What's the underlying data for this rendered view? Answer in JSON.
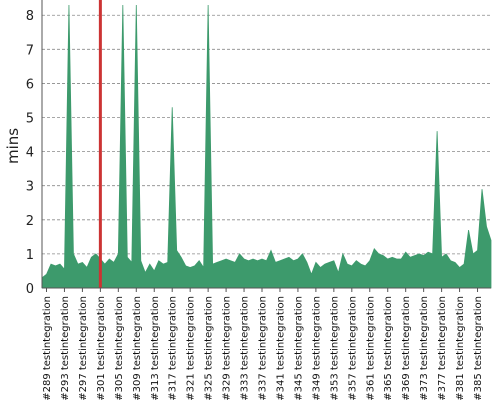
{
  "chart_data": {
    "type": "area",
    "ylabel": "mins",
    "xlabel": "",
    "title": "",
    "ylim": [
      0,
      8.3
    ],
    "yticks": [
      0,
      1,
      2,
      3,
      4,
      5,
      6,
      7,
      8
    ],
    "grid": true,
    "color_area": "#3d9a6c",
    "color_marker": "#cc3333",
    "x_labels": [
      "#289 testintegration",
      "#293 testintegration",
      "#297 testintegration",
      "#301 testintegration",
      "#305 testintegration",
      "#309 testintegration",
      "#313 testintegration",
      "#317 testintegration",
      "#321 testintegration",
      "#325 testintegration",
      "#329 testintegration",
      "#333 testintegration",
      "#337 testintegration",
      "#341 testintegration",
      "#345 testintegration",
      "#349 testintegration",
      "#353 testintegration",
      "#357 testintegration",
      "#361 testintegration",
      "#365 testintegration",
      "#369 testintegration",
      "#373 testintegration",
      "#377 testintegration",
      "#381 testintegration",
      "#385 testintegration"
    ],
    "x_start": 288,
    "x_end": 388,
    "marker_build": 301,
    "series": [
      {
        "points": [
          [
            288,
            0.3
          ],
          [
            289,
            0.4
          ],
          [
            290,
            0.7
          ],
          [
            291,
            0.65
          ],
          [
            292,
            0.7
          ],
          [
            293,
            0.55
          ],
          [
            294,
            8.3
          ],
          [
            295,
            1.0
          ],
          [
            296,
            0.7
          ],
          [
            297,
            0.75
          ],
          [
            298,
            0.6
          ],
          [
            299,
            0.9
          ],
          [
            300,
            1.0
          ],
          [
            301,
            0.85
          ],
          [
            302,
            0.7
          ],
          [
            303,
            0.85
          ],
          [
            304,
            0.75
          ],
          [
            305,
            1.0
          ],
          [
            306,
            8.3
          ],
          [
            307,
            0.9
          ],
          [
            308,
            0.75
          ],
          [
            309,
            8.3
          ],
          [
            310,
            0.8
          ],
          [
            311,
            0.45
          ],
          [
            312,
            0.7
          ],
          [
            313,
            0.5
          ],
          [
            314,
            0.8
          ],
          [
            315,
            0.7
          ],
          [
            316,
            0.75
          ],
          [
            317,
            5.3
          ],
          [
            318,
            1.1
          ],
          [
            319,
            0.9
          ],
          [
            320,
            0.65
          ],
          [
            321,
            0.6
          ],
          [
            322,
            0.65
          ],
          [
            323,
            0.8
          ],
          [
            324,
            0.6
          ],
          [
            325,
            8.3
          ],
          [
            326,
            0.7
          ],
          [
            327,
            0.75
          ],
          [
            328,
            0.8
          ],
          [
            329,
            0.85
          ],
          [
            330,
            0.8
          ],
          [
            331,
            0.75
          ],
          [
            332,
            1.0
          ],
          [
            333,
            0.85
          ],
          [
            334,
            0.8
          ],
          [
            335,
            0.85
          ],
          [
            336,
            0.8
          ],
          [
            337,
            0.85
          ],
          [
            338,
            0.8
          ],
          [
            339,
            1.1
          ],
          [
            340,
            0.75
          ],
          [
            341,
            0.8
          ],
          [
            342,
            0.85
          ],
          [
            343,
            0.9
          ],
          [
            344,
            0.8
          ],
          [
            345,
            0.85
          ],
          [
            346,
            1.0
          ],
          [
            347,
            0.75
          ],
          [
            348,
            0.4
          ],
          [
            349,
            0.75
          ],
          [
            350,
            0.6
          ],
          [
            351,
            0.7
          ],
          [
            352,
            0.75
          ],
          [
            353,
            0.8
          ],
          [
            354,
            0.45
          ],
          [
            355,
            1.0
          ],
          [
            356,
            0.7
          ],
          [
            357,
            0.65
          ],
          [
            358,
            0.8
          ],
          [
            359,
            0.7
          ],
          [
            360,
            0.65
          ],
          [
            361,
            0.8
          ],
          [
            362,
            1.15
          ],
          [
            363,
            1.0
          ],
          [
            364,
            0.95
          ],
          [
            365,
            0.85
          ],
          [
            366,
            0.9
          ],
          [
            367,
            0.85
          ],
          [
            368,
            0.85
          ],
          [
            369,
            1.05
          ],
          [
            370,
            0.9
          ],
          [
            371,
            0.95
          ],
          [
            372,
            1.0
          ],
          [
            373,
            0.95
          ],
          [
            374,
            1.05
          ],
          [
            375,
            1.0
          ],
          [
            376,
            4.6
          ],
          [
            377,
            0.9
          ],
          [
            378,
            1.0
          ],
          [
            379,
            0.8
          ],
          [
            380,
            0.75
          ],
          [
            381,
            0.6
          ],
          [
            382,
            0.7
          ],
          [
            383,
            1.7
          ],
          [
            384,
            1.0
          ],
          [
            385,
            1.1
          ],
          [
            386,
            2.9
          ],
          [
            387,
            1.8
          ],
          [
            388,
            1.4
          ]
        ]
      }
    ]
  }
}
